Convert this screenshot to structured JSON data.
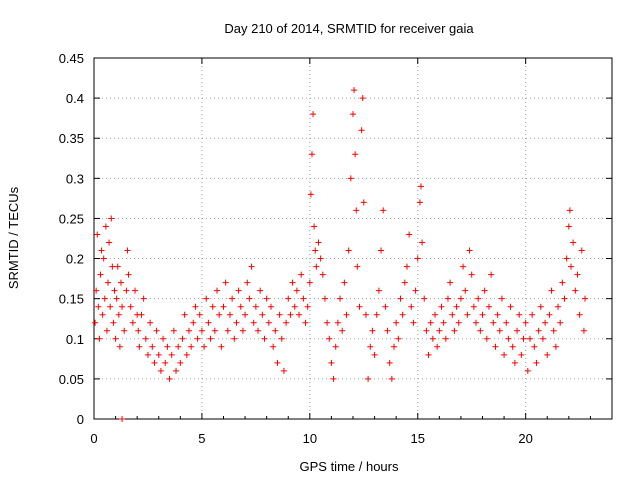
{
  "chart_data": {
    "type": "scatter",
    "title": "Day 210 of 2014, SRMTID for receiver gaia",
    "xlabel": "GPS time / hours",
    "ylabel": "SRMTID / TECUs",
    "xlim": [
      0,
      24
    ],
    "ylim": [
      0,
      0.45
    ],
    "xticks": [
      "0",
      "5",
      "10",
      "15",
      "20"
    ],
    "yticks": [
      "0",
      "0.05",
      "0.1",
      "0.15",
      "0.2",
      "0.25",
      "0.3",
      "0.35",
      "0.4",
      "0.45"
    ],
    "grid": true,
    "marker": "+",
    "color": "#ff0000",
    "series": [
      {
        "name": "SRMTID",
        "points": [
          [
            0.05,
            0.12
          ],
          [
            0.1,
            0.16
          ],
          [
            0.15,
            0.23
          ],
          [
            0.2,
            0.14
          ],
          [
            0.25,
            0.1
          ],
          [
            0.3,
            0.18
          ],
          [
            0.35,
            0.21
          ],
          [
            0.4,
            0.13
          ],
          [
            0.45,
            0.2
          ],
          [
            0.5,
            0.15
          ],
          [
            0.55,
            0.24
          ],
          [
            0.6,
            0.11
          ],
          [
            0.65,
            0.17
          ],
          [
            0.7,
            0.22
          ],
          [
            0.75,
            0.14
          ],
          [
            0.8,
            0.25
          ],
          [
            0.85,
            0.19
          ],
          [
            0.9,
            0.12
          ],
          [
            0.95,
            0.16
          ],
          [
            1.0,
            0.1
          ],
          [
            1.05,
            0.15
          ],
          [
            1.1,
            0.19
          ],
          [
            1.15,
            0.13
          ],
          [
            1.2,
            0.09
          ],
          [
            1.25,
            0.17
          ],
          [
            1.3,
            0.14
          ],
          [
            1.4,
            0.11
          ],
          [
            1.5,
            0.16
          ],
          [
            1.55,
            0.21
          ],
          [
            1.6,
            0.18
          ],
          [
            1.7,
            0.14
          ],
          [
            1.8,
            0.12
          ],
          [
            1.9,
            0.16
          ],
          [
            2.0,
            0.13
          ],
          [
            2.05,
            0.11
          ],
          [
            2.1,
            0.09
          ],
          [
            2.2,
            0.13
          ],
          [
            2.3,
            0.15
          ],
          [
            2.4,
            0.1
          ],
          [
            2.5,
            0.08
          ],
          [
            2.6,
            0.12
          ],
          [
            2.7,
            0.09
          ],
          [
            2.8,
            0.07
          ],
          [
            2.9,
            0.11
          ],
          [
            3.0,
            0.08
          ],
          [
            3.1,
            0.06
          ],
          [
            3.2,
            0.1
          ],
          [
            3.3,
            0.07
          ],
          [
            3.4,
            0.09
          ],
          [
            3.5,
            0.05
          ],
          [
            3.6,
            0.08
          ],
          [
            3.7,
            0.11
          ],
          [
            3.8,
            0.06
          ],
          [
            3.9,
            0.09
          ],
          [
            4.0,
            0.07
          ],
          [
            4.1,
            0.1
          ],
          [
            4.2,
            0.13
          ],
          [
            4.3,
            0.08
          ],
          [
            4.4,
            0.11
          ],
          [
            4.5,
            0.09
          ],
          [
            4.6,
            0.12
          ],
          [
            4.7,
            0.14
          ],
          [
            4.8,
            0.1
          ],
          [
            4.9,
            0.13
          ],
          [
            5.0,
            0.11
          ],
          [
            5.1,
            0.09
          ],
          [
            5.2,
            0.15
          ],
          [
            5.3,
            0.12
          ],
          [
            5.4,
            0.1
          ],
          [
            5.5,
            0.14
          ],
          [
            5.6,
            0.11
          ],
          [
            5.7,
            0.16
          ],
          [
            5.8,
            0.13
          ],
          [
            5.9,
            0.09
          ],
          [
            6.0,
            0.14
          ],
          [
            6.1,
            0.17
          ],
          [
            6.2,
            0.11
          ],
          [
            6.3,
            0.13
          ],
          [
            6.4,
            0.15
          ],
          [
            6.5,
            0.1
          ],
          [
            6.6,
            0.12
          ],
          [
            6.7,
            0.16
          ],
          [
            6.8,
            0.14
          ],
          [
            6.9,
            0.11
          ],
          [
            7.0,
            0.13
          ],
          [
            7.1,
            0.17
          ],
          [
            7.2,
            0.15
          ],
          [
            7.3,
            0.19
          ],
          [
            7.4,
            0.12
          ],
          [
            7.5,
            0.14
          ],
          [
            7.6,
            0.11
          ],
          [
            7.7,
            0.16
          ],
          [
            7.8,
            0.13
          ],
          [
            7.9,
            0.1
          ],
          [
            8.0,
            0.15
          ],
          [
            8.1,
            0.12
          ],
          [
            8.2,
            0.14
          ],
          [
            8.3,
            0.09
          ],
          [
            8.4,
            0.11
          ],
          [
            8.5,
            0.07
          ],
          [
            8.6,
            0.13
          ],
          [
            8.7,
            0.1
          ],
          [
            8.8,
            0.06
          ],
          [
            8.9,
            0.12
          ],
          [
            9.0,
            0.15
          ],
          [
            9.1,
            0.13
          ],
          [
            9.2,
            0.17
          ],
          [
            9.3,
            0.14
          ],
          [
            9.4,
            0.16
          ],
          [
            9.5,
            0.13
          ],
          [
            9.6,
            0.18
          ],
          [
            9.7,
            0.15
          ],
          [
            9.8,
            0.12
          ],
          [
            9.9,
            0.14
          ],
          [
            10.0,
            0.17
          ],
          [
            10.05,
            0.28
          ],
          [
            10.1,
            0.33
          ],
          [
            10.15,
            0.38
          ],
          [
            10.2,
            0.24
          ],
          [
            10.25,
            0.21
          ],
          [
            10.3,
            0.19
          ],
          [
            10.4,
            0.22
          ],
          [
            10.5,
            0.2
          ],
          [
            10.6,
            0.18
          ],
          [
            10.7,
            0.15
          ],
          [
            10.8,
            0.12
          ],
          [
            10.9,
            0.1
          ],
          [
            11.0,
            0.07
          ],
          [
            11.1,
            0.05
          ],
          [
            11.2,
            0.09
          ],
          [
            11.3,
            0.12
          ],
          [
            11.4,
            0.15
          ],
          [
            11.5,
            0.11
          ],
          [
            11.6,
            0.17
          ],
          [
            11.7,
            0.13
          ],
          [
            11.8,
            0.21
          ],
          [
            11.9,
            0.3
          ],
          [
            12.0,
            0.38
          ],
          [
            12.05,
            0.41
          ],
          [
            12.1,
            0.33
          ],
          [
            12.15,
            0.26
          ],
          [
            12.2,
            0.19
          ],
          [
            12.3,
            0.14
          ],
          [
            12.4,
            0.36
          ],
          [
            12.45,
            0.4
          ],
          [
            12.5,
            0.27
          ],
          [
            12.6,
            0.13
          ],
          [
            12.7,
            0.05
          ],
          [
            12.8,
            0.09
          ],
          [
            12.9,
            0.11
          ],
          [
            13.0,
            0.08
          ],
          [
            13.1,
            0.13
          ],
          [
            13.2,
            0.16
          ],
          [
            13.3,
            0.21
          ],
          [
            13.4,
            0.26
          ],
          [
            13.5,
            0.14
          ],
          [
            13.6,
            0.11
          ],
          [
            13.7,
            0.07
          ],
          [
            13.8,
            0.05
          ],
          [
            13.9,
            0.09
          ],
          [
            14.0,
            0.12
          ],
          [
            14.1,
            0.1
          ],
          [
            14.2,
            0.15
          ],
          [
            14.3,
            0.13
          ],
          [
            14.4,
            0.17
          ],
          [
            14.5,
            0.19
          ],
          [
            14.6,
            0.23
          ],
          [
            14.7,
            0.14
          ],
          [
            14.8,
            0.12
          ],
          [
            14.9,
            0.16
          ],
          [
            15.0,
            0.2
          ],
          [
            15.1,
            0.27
          ],
          [
            15.15,
            0.29
          ],
          [
            15.2,
            0.22
          ],
          [
            15.3,
            0.15
          ],
          [
            15.4,
            0.11
          ],
          [
            15.5,
            0.08
          ],
          [
            15.6,
            0.12
          ],
          [
            15.7,
            0.1
          ],
          [
            15.8,
            0.13
          ],
          [
            15.9,
            0.09
          ],
          [
            16.0,
            0.11
          ],
          [
            16.1,
            0.14
          ],
          [
            16.2,
            0.12
          ],
          [
            16.3,
            0.1
          ],
          [
            16.4,
            0.15
          ],
          [
            16.5,
            0.17
          ],
          [
            16.6,
            0.13
          ],
          [
            16.7,
            0.11
          ],
          [
            16.8,
            0.14
          ],
          [
            16.9,
            0.12
          ],
          [
            17.0,
            0.15
          ],
          [
            17.1,
            0.19
          ],
          [
            17.2,
            0.16
          ],
          [
            17.3,
            0.13
          ],
          [
            17.4,
            0.21
          ],
          [
            17.5,
            0.18
          ],
          [
            17.6,
            0.14
          ],
          [
            17.7,
            0.12
          ],
          [
            17.8,
            0.15
          ],
          [
            17.9,
            0.11
          ],
          [
            18.0,
            0.13
          ],
          [
            18.1,
            0.16
          ],
          [
            18.2,
            0.1
          ],
          [
            18.3,
            0.14
          ],
          [
            18.4,
            0.18
          ],
          [
            18.5,
            0.12
          ],
          [
            18.6,
            0.09
          ],
          [
            18.7,
            0.13
          ],
          [
            18.8,
            0.11
          ],
          [
            18.9,
            0.15
          ],
          [
            19.0,
            0.08
          ],
          [
            19.1,
            0.12
          ],
          [
            19.2,
            0.1
          ],
          [
            19.3,
            0.14
          ],
          [
            19.4,
            0.09
          ],
          [
            19.5,
            0.07
          ],
          [
            19.6,
            0.11
          ],
          [
            19.7,
            0.13
          ],
          [
            19.8,
            0.08
          ],
          [
            19.9,
            0.1
          ],
          [
            20.0,
            0.12
          ],
          [
            20.1,
            0.06
          ],
          [
            20.2,
            0.1
          ],
          [
            20.3,
            0.13
          ],
          [
            20.4,
            0.09
          ],
          [
            20.5,
            0.07
          ],
          [
            20.6,
            0.11
          ],
          [
            20.7,
            0.14
          ],
          [
            20.8,
            0.1
          ],
          [
            20.9,
            0.12
          ],
          [
            21.0,
            0.08
          ],
          [
            21.1,
            0.13
          ],
          [
            21.2,
            0.16
          ],
          [
            21.3,
            0.11
          ],
          [
            21.4,
            0.09
          ],
          [
            21.5,
            0.14
          ],
          [
            21.6,
            0.12
          ],
          [
            21.7,
            0.17
          ],
          [
            21.8,
            0.15
          ],
          [
            21.9,
            0.2
          ],
          [
            22.0,
            0.24
          ],
          [
            22.05,
            0.26
          ],
          [
            22.1,
            0.19
          ],
          [
            22.2,
            0.22
          ],
          [
            22.3,
            0.16
          ],
          [
            22.4,
            0.18
          ],
          [
            22.5,
            0.13
          ],
          [
            22.6,
            0.21
          ],
          [
            22.7,
            0.11
          ],
          [
            22.75,
            0.15
          ],
          [
            1.3,
            0.0
          ]
        ]
      }
    ]
  }
}
